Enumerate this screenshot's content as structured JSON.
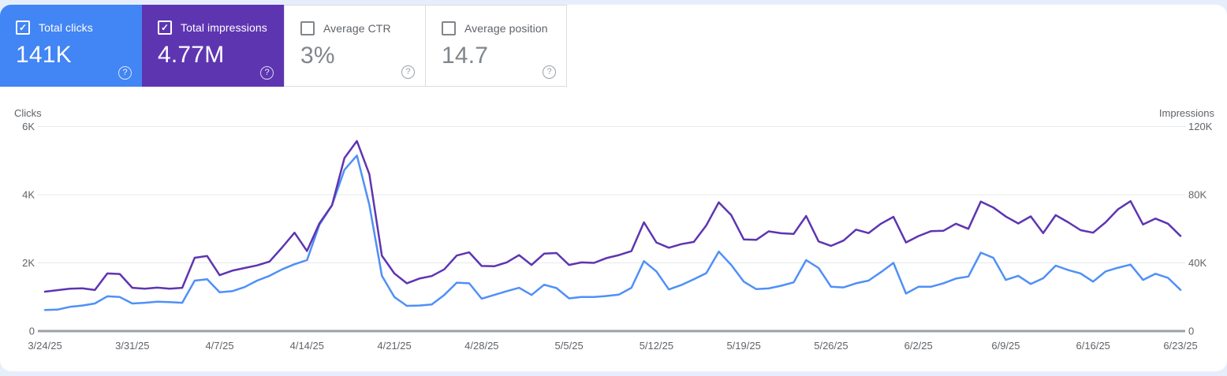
{
  "page": {
    "background": "#e7eefb",
    "panel_background": "#ffffff"
  },
  "icons": {
    "check": "✓",
    "help": "?"
  },
  "cards": [
    {
      "label": "Total clicks",
      "value": "141K",
      "selected": true,
      "background": "#4285f4"
    },
    {
      "label": "Total impressions",
      "value": "4.77M",
      "selected": true,
      "background": "#5e35b1"
    },
    {
      "label": "Average CTR",
      "value": "3%",
      "selected": false,
      "background": "#ffffff"
    },
    {
      "label": "Average position",
      "value": "14.7",
      "selected": false,
      "background": "#ffffff"
    }
  ],
  "chart_data": {
    "type": "line",
    "grid": "horizontal",
    "x_tick_labels": [
      "3/24/25",
      "3/31/25",
      "4/7/25",
      "4/14/25",
      "4/21/25",
      "4/28/25",
      "5/5/25",
      "5/12/25",
      "5/19/25",
      "5/26/25",
      "6/2/25",
      "6/9/25",
      "6/16/25",
      "6/23/25"
    ],
    "num_points": 92,
    "left_axis": {
      "title": "Clicks",
      "tick_labels": [
        "0",
        "2K",
        "4K",
        "6K"
      ],
      "min": 0,
      "max": 6000
    },
    "right_axis": {
      "title": "Impressions",
      "tick_labels": [
        "0",
        "40K",
        "80K",
        "120K"
      ],
      "min": 0,
      "max": 120000
    },
    "colors": {
      "grid": "#e6e8eb",
      "zero_line": "#9aa0a6",
      "tick_text": "#5f6368"
    },
    "series": [
      {
        "name": "Total clicks",
        "axis": "left",
        "color": "#4f90f8",
        "values": [
          620,
          630,
          710,
          750,
          810,
          1020,
          1000,
          810,
          830,
          860,
          850,
          830,
          1480,
          1520,
          1140,
          1170,
          1290,
          1480,
          1620,
          1810,
          1960,
          2080,
          3120,
          3690,
          4730,
          5150,
          3700,
          1620,
          1000,
          740,
          750,
          780,
          1060,
          1420,
          1400,
          950,
          1060,
          1170,
          1270,
          1060,
          1360,
          1260,
          960,
          1000,
          1000,
          1030,
          1070,
          1270,
          2050,
          1750,
          1220,
          1350,
          1520,
          1700,
          2330,
          1940,
          1450,
          1230,
          1250,
          1330,
          1430,
          2080,
          1850,
          1300,
          1280,
          1400,
          1480,
          1730,
          2000,
          1100,
          1300,
          1300,
          1400,
          1540,
          1600,
          2300,
          2150,
          1500,
          1620,
          1380,
          1550,
          1920,
          1790,
          1690,
          1450,
          1750,
          1860,
          1950,
          1500,
          1680,
          1560,
          1210
        ]
      },
      {
        "name": "Total impressions",
        "axis": "right",
        "color": "#5e35b1",
        "values": [
          23100,
          24000,
          24900,
          25100,
          24100,
          33800,
          33500,
          25400,
          24900,
          25500,
          24900,
          25400,
          43000,
          44000,
          32800,
          35400,
          37000,
          38500,
          40800,
          49000,
          57700,
          47000,
          63200,
          73800,
          101500,
          111500,
          92000,
          44200,
          33800,
          28000,
          30800,
          32300,
          36200,
          44300,
          46200,
          38200,
          38000,
          40300,
          44600,
          38800,
          45400,
          45800,
          38800,
          40300,
          40000,
          42800,
          44600,
          46900,
          63800,
          52000,
          48900,
          51000,
          52300,
          62000,
          75500,
          68000,
          53800,
          53500,
          58500,
          57400,
          57000,
          67500,
          52600,
          50000,
          53100,
          59500,
          57500,
          63000,
          67000,
          52000,
          55700,
          58600,
          58800,
          63000,
          60000,
          76000,
          72500,
          67200,
          63100,
          67300,
          57500,
          68000,
          63800,
          59200,
          57700,
          63800,
          71500,
          76200,
          62500,
          66000,
          63000,
          55800
        ]
      }
    ]
  }
}
